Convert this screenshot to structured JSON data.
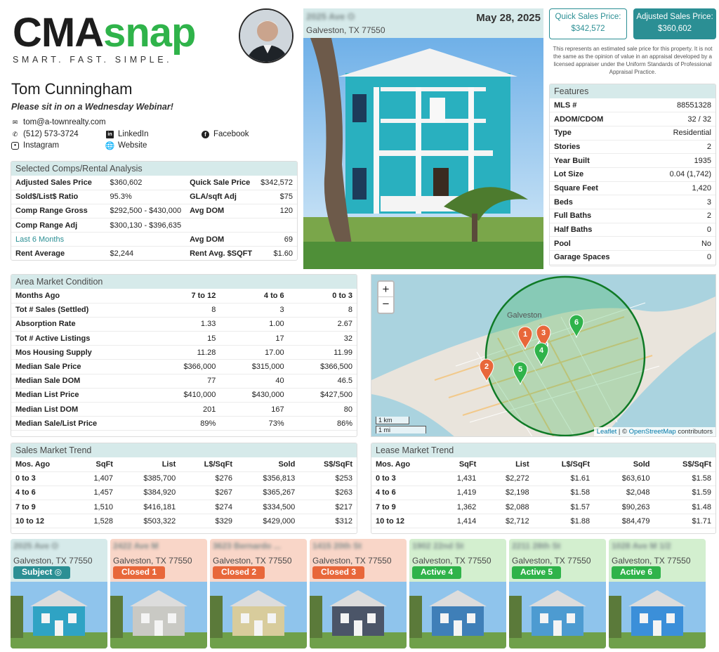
{
  "logo": {
    "main_a": "CMA",
    "main_b": "snap",
    "tagline": "SMART. FAST. SIMPLE."
  },
  "agent": {
    "name": "Tom Cunningham",
    "tagline": "Please sit in on a Wednesday Webinar!",
    "email": "tom@a-townrealty.com",
    "phone": "(512) 573-3724",
    "linkedin": "LinkedIn",
    "facebook": "Facebook",
    "instagram": "Instagram",
    "website": "Website"
  },
  "property": {
    "address": "2025 Ave O",
    "city": "Galveston, TX 77550",
    "date": "May 28, 2025"
  },
  "prices": {
    "quick_label": "Quick Sales Price:",
    "quick_value": "$342,572",
    "adjusted_label": "Adjusted Sales Price:",
    "adjusted_value": "$360,602",
    "disclaimer": "This represents an estimated sale price for this property. It is not the same as the opinion of value in an appraisal developed by a licensed appraiser under the Uniform Standards of Professional Appraisal Practice."
  },
  "features": {
    "title": "Features",
    "rows": [
      {
        "label": "MLS #",
        "value": "88551328"
      },
      {
        "label": "ADOM/CDOM",
        "value": "32 / 32"
      },
      {
        "label": "Type",
        "value": "Residential"
      },
      {
        "label": "Stories",
        "value": "2"
      },
      {
        "label": "Year Built",
        "value": "1935"
      },
      {
        "label": "Lot Size",
        "value": "0.04 (1,742)"
      },
      {
        "label": "Square Feet",
        "value": "1,420"
      },
      {
        "label": "Beds",
        "value": "3"
      },
      {
        "label": "Full Baths",
        "value": "2"
      },
      {
        "label": "Half Baths",
        "value": "0"
      },
      {
        "label": "Pool",
        "value": "No"
      },
      {
        "label": "Garage Spaces",
        "value": "0"
      }
    ]
  },
  "comps": {
    "title": "Selected Comps/Rental Analysis",
    "adj_sales_label": "Adjusted Sales Price",
    "adj_sales_value": "$360,602",
    "quick_sale_label": "Quick Sale Price",
    "quick_sale_value": "$342,572",
    "ratio_label": "Sold$/List$ Ratio",
    "ratio_value": "95.3%",
    "gla_label": "GLA/sqft Adj",
    "gla_value": "$75",
    "range_gross_label": "Comp Range Gross",
    "range_gross_value": "$292,500 - $430,000",
    "avg_dom_label": "Avg DOM",
    "avg_dom_value": "120",
    "range_adj_label": "Comp Range Adj",
    "range_adj_value": "$300,130 - $396,635",
    "last6_label": "Last 6 Months",
    "avg_dom2_label": "Avg DOM",
    "avg_dom2_value": "69",
    "rent_avg_label": "Rent Average",
    "rent_avg_value": "$2,244",
    "rent_sqft_label": "Rent Avg. $SQFT",
    "rent_sqft_value": "$1.60"
  },
  "area_market": {
    "title": "Area Market Condition",
    "headers": [
      "Months Ago",
      "7 to 12",
      "4 to 6",
      "0 to 3"
    ],
    "rows": [
      [
        "Tot # Sales (Settled)",
        "8",
        "3",
        "8"
      ],
      [
        "Absorption Rate",
        "1.33",
        "1.00",
        "2.67"
      ],
      [
        "Tot # Active Listings",
        "15",
        "17",
        "32"
      ],
      [
        "Mos Housing Supply",
        "11.28",
        "17.00",
        "11.99"
      ],
      [
        "Median Sale Price",
        "$366,000",
        "$315,000",
        "$366,500"
      ],
      [
        "Median Sale DOM",
        "77",
        "40",
        "46.5"
      ],
      [
        "Median List Price",
        "$410,000",
        "$430,000",
        "$427,500"
      ],
      [
        "Median List DOM",
        "201",
        "167",
        "80"
      ],
      [
        "Median Sale/List Price",
        "89%",
        "73%",
        "86%"
      ]
    ]
  },
  "map": {
    "zoom_in": "+",
    "zoom_out": "−",
    "city_label": "Galveston",
    "scale_km": "1 km",
    "scale_mi": "1 mi",
    "attribution_leaflet": "Leaflet",
    "attribution_sep": " | © ",
    "attribution_osm": "OpenStreetMap",
    "attribution_tail": " contributors",
    "markers": [
      {
        "label": "1",
        "color": "#e8673a"
      },
      {
        "label": "2",
        "color": "#e8673a"
      },
      {
        "label": "3",
        "color": "#e8673a"
      },
      {
        "label": "4",
        "color": "#2fb34a"
      },
      {
        "label": "5",
        "color": "#2fb34a"
      },
      {
        "label": "6",
        "color": "#2fb34a"
      }
    ]
  },
  "sales_trend": {
    "title": "Sales Market Trend",
    "headers": [
      "Mos. Ago",
      "SqFt",
      "List",
      "L$/SqFt",
      "Sold",
      "S$/SqFt"
    ],
    "rows": [
      [
        "0 to 3",
        "1,407",
        "$385,700",
        "$276",
        "$356,813",
        "$253"
      ],
      [
        "4 to 6",
        "1,457",
        "$384,920",
        "$267",
        "$365,267",
        "$263"
      ],
      [
        "7 to 9",
        "1,510",
        "$416,181",
        "$274",
        "$334,500",
        "$217"
      ],
      [
        "10 to 12",
        "1,528",
        "$503,322",
        "$329",
        "$429,000",
        "$312"
      ]
    ]
  },
  "lease_trend": {
    "title": "Lease Market Trend",
    "headers": [
      "Mos. Ago",
      "SqFt",
      "List",
      "L$/SqFt",
      "Sold",
      "S$/SqFt"
    ],
    "rows": [
      [
        "0 to 3",
        "1,431",
        "$2,272",
        "$1.61",
        "$63,610",
        "$1.58"
      ],
      [
        "4 to 6",
        "1,419",
        "$2,198",
        "$1.58",
        "$2,048",
        "$1.59"
      ],
      [
        "7 to 9",
        "1,362",
        "$2,088",
        "$1.57",
        "$90,263",
        "$1.48"
      ],
      [
        "10 to 12",
        "1,414",
        "$2,712",
        "$1.88",
        "$84,479",
        "$1.71"
      ]
    ]
  },
  "cards": [
    {
      "address": "2025 Ave O",
      "city": "Galveston, TX 77550",
      "badge": "Subject ◎",
      "bg": "#d6eaea",
      "badge_color": "#2b8f94",
      "house": "#2fa3c4"
    },
    {
      "address": "2422 Ave M",
      "city": "Galveston, TX 77550",
      "badge": "Closed 1",
      "bg": "#f9d6c8",
      "badge_color": "#e8673a",
      "house": "#c9c9c4"
    },
    {
      "address": "3623 Bernardo ...",
      "city": "Galveston, TX 77550",
      "badge": "Closed 2",
      "bg": "#f9d6c8",
      "badge_color": "#e8673a",
      "house": "#d8cc9c"
    },
    {
      "address": "1415 20th St",
      "city": "Galveston, TX 77550",
      "badge": "Closed 3",
      "bg": "#f9d6c8",
      "badge_color": "#e8673a",
      "house": "#4b5568"
    },
    {
      "address": "1902 22nd St",
      "city": "Galveston, TX 77550",
      "badge": "Active 4",
      "bg": "#d3efcf",
      "badge_color": "#2fb34a",
      "house": "#3f7fb8"
    },
    {
      "address": "2211 28th St",
      "city": "Galveston, TX 77550",
      "badge": "Active 5",
      "bg": "#d3efcf",
      "badge_color": "#2fb34a",
      "house": "#4d9bd1"
    },
    {
      "address": "1028 Ave M 1/2",
      "city": "Galveston, TX 77550",
      "badge": "Active 6",
      "bg": "#d3efcf",
      "badge_color": "#2fb34a",
      "house": "#3b8fd9"
    }
  ]
}
